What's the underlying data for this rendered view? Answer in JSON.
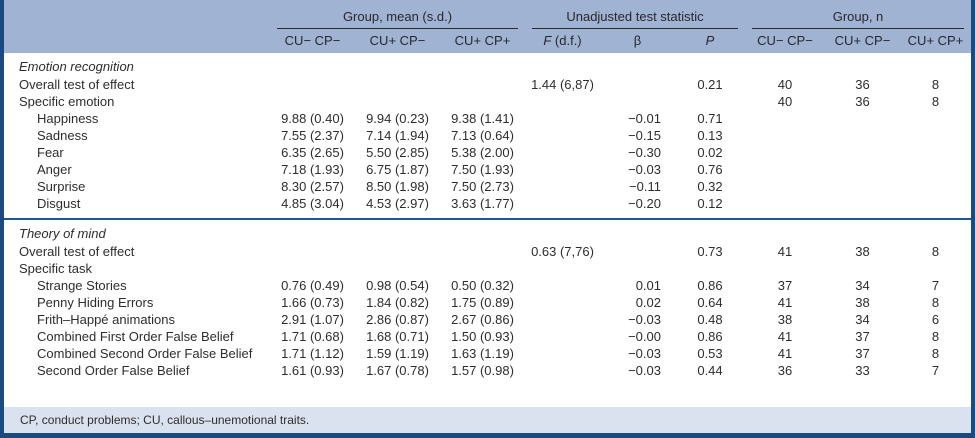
{
  "table": {
    "column_groups": [
      {
        "label": "Group, mean (s.d.)"
      },
      {
        "label": "Unadjusted test statistic"
      },
      {
        "label": "Group, n"
      }
    ],
    "columns": [
      "CU− CP−",
      "CU+ CP−",
      "CU+ CP+",
      "F (d.f.)",
      "β",
      "P",
      "CU− CP−",
      "CU+ CP−",
      "CU+ CP+"
    ],
    "sections": [
      {
        "title": "Emotion recognition",
        "rows": [
          {
            "label": "Overall test of effect",
            "indent": 0,
            "cells": [
              "",
              "",
              "",
              "1.44 (6,87)",
              "",
              "0.21",
              "40",
              "36",
              "8"
            ]
          },
          {
            "label": "Specific emotion",
            "indent": 0,
            "cells": [
              "",
              "",
              "",
              "",
              "",
              "",
              "40",
              "36",
              "8"
            ]
          },
          {
            "label": "Happiness",
            "indent": 1,
            "cells": [
              "9.88 (0.40)",
              "9.94 (0.23)",
              "9.38 (1.41)",
              "",
              "−0.01",
              "0.71",
              "",
              "",
              ""
            ]
          },
          {
            "label": "Sadness",
            "indent": 1,
            "cells": [
              "7.55 (2.37)",
              "7.14 (1.94)",
              "7.13 (0.64)",
              "",
              "−0.15",
              "0.13",
              "",
              "",
              ""
            ]
          },
          {
            "label": "Fear",
            "indent": 1,
            "cells": [
              "6.35 (2.65)",
              "5.50 (2.85)",
              "5.38 (2.00)",
              "",
              "−0.30",
              "0.02",
              "",
              "",
              ""
            ]
          },
          {
            "label": "Anger",
            "indent": 1,
            "cells": [
              "7.18 (1.93)",
              "6.75 (1.87)",
              "7.50 (1.93)",
              "",
              "−0.03",
              "0.76",
              "",
              "",
              ""
            ]
          },
          {
            "label": "Surprise",
            "indent": 1,
            "cells": [
              "8.30 (2.57)",
              "8.50 (1.98)",
              "7.50 (2.73)",
              "",
              "−0.11",
              "0.32",
              "",
              "",
              ""
            ]
          },
          {
            "label": "Disgust",
            "indent": 1,
            "cells": [
              "4.85 (3.04)",
              "4.53 (2.97)",
              "3.63 (1.77)",
              "",
              "−0.20",
              "0.12",
              "",
              "",
              ""
            ]
          }
        ]
      },
      {
        "title": "Theory of mind",
        "rows": [
          {
            "label": "Overall test of effect",
            "indent": 0,
            "cells": [
              "",
              "",
              "",
              "0.63 (7,76)",
              "",
              "0.73",
              "41",
              "38",
              "8"
            ]
          },
          {
            "label": "Specific task",
            "indent": 0,
            "cells": [
              "",
              "",
              "",
              "",
              "",
              "",
              "",
              "",
              ""
            ]
          },
          {
            "label": "Strange Stories",
            "indent": 1,
            "cells": [
              "0.76 (0.49)",
              "0.98 (0.54)",
              "0.50 (0.32)",
              "",
              "0.01",
              "0.86",
              "37",
              "34",
              "7"
            ]
          },
          {
            "label": "Penny Hiding Errors",
            "indent": 1,
            "cells": [
              "1.66 (0.73)",
              "1.84 (0.82)",
              "1.75 (0.89)",
              "",
              "0.02",
              "0.64",
              "41",
              "38",
              "8"
            ]
          },
          {
            "label": "Frith–Happé animations",
            "indent": 1,
            "cells": [
              "2.91 (1.07)",
              "2.86 (0.87)",
              "2.67 (0.86)",
              "",
              "−0.03",
              "0.48",
              "38",
              "34",
              "6"
            ]
          },
          {
            "label": "Combined First Order False Belief",
            "indent": 1,
            "cells": [
              "1.71 (0.68)",
              "1.68 (0.71)",
              "1.50 (0.93)",
              "",
              "−0.00",
              "0.86",
              "41",
              "37",
              "8"
            ]
          },
          {
            "label": "Combined Second Order False Belief",
            "indent": 1,
            "cells": [
              "1.71 (1.12)",
              "1.59 (1.19)",
              "1.63 (1.19)",
              "",
              "−0.03",
              "0.53",
              "41",
              "37",
              "8"
            ]
          },
          {
            "label": "Second Order False Belief",
            "indent": 1,
            "cells": [
              "1.61 (0.93)",
              "1.67 (0.78)",
              "1.57 (0.98)",
              "",
              "−0.03",
              "0.44",
              "36",
              "33",
              "7"
            ]
          }
        ]
      }
    ],
    "footnote": "CP, conduct problems; CU, callous–unemotional traits."
  }
}
